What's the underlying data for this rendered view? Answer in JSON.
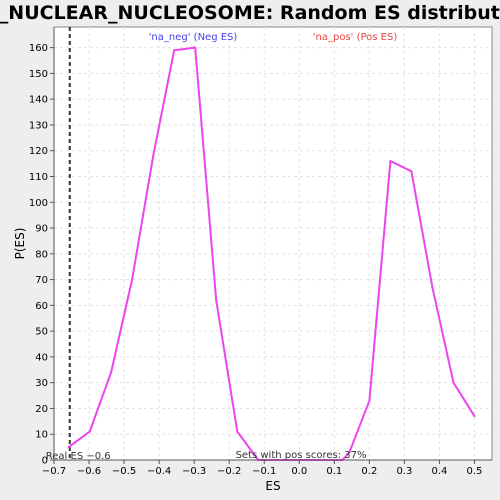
{
  "chart_data": {
    "type": "line",
    "title": "GO_NUCLEAR_NUCLEOSOME: Random ES distribution",
    "xlabel": "ES",
    "ylabel": "P(ES)",
    "xlim": [
      -0.7,
      0.55
    ],
    "ylim": [
      0,
      168
    ],
    "x_ticks": [
      -0.7,
      -0.6,
      -0.5,
      -0.4,
      -0.3,
      -0.2,
      -0.1,
      0.0,
      0.1,
      0.2,
      0.3,
      0.4,
      0.5
    ],
    "x_tick_labels": [
      "−0.7",
      "−0.6",
      "−0.5",
      "−0.4",
      "−0.3",
      "−0.2",
      "−0.1",
      "0.0",
      "0.1",
      "0.2",
      "0.3",
      "0.4",
      "0.5"
    ],
    "y_ticks": [
      0,
      10,
      20,
      30,
      40,
      50,
      60,
      70,
      80,
      90,
      100,
      110,
      120,
      130,
      140,
      150,
      160
    ],
    "y_tick_labels": [
      "0",
      "10",
      "20",
      "30",
      "40",
      "50",
      "60",
      "70",
      "80",
      "90",
      "100",
      "110",
      "120",
      "130",
      "140",
      "150",
      "160"
    ],
    "grid": true,
    "series": [
      {
        "name": "",
        "color": "#ee44ee",
        "x": [
          -0.658,
          -0.598,
          -0.537,
          -0.477,
          -0.417,
          -0.357,
          -0.297,
          -0.237,
          -0.177,
          -0.117,
          -0.057,
          0.003,
          0.063,
          0.123,
          0.143,
          0.2,
          0.26,
          0.32,
          0.38,
          0.44,
          0.5
        ],
        "y": [
          5,
          11,
          34,
          70,
          118,
          159,
          160,
          62,
          11,
          0,
          0,
          0,
          0,
          0,
          3,
          23,
          116,
          112,
          67,
          30,
          17
        ]
      }
    ],
    "legend": [
      {
        "label": "'na_neg' (Neg ES)",
        "color": "#4444ee"
      },
      {
        "label": "'na_pos' (Pos ES)",
        "color": "#ee4444"
      }
    ],
    "reference_line": {
      "x": -0.655,
      "label": "Real ES −0.6",
      "style": "dashed",
      "color": "#333333"
    },
    "annotation": "Sets with pos scores: 37%"
  }
}
